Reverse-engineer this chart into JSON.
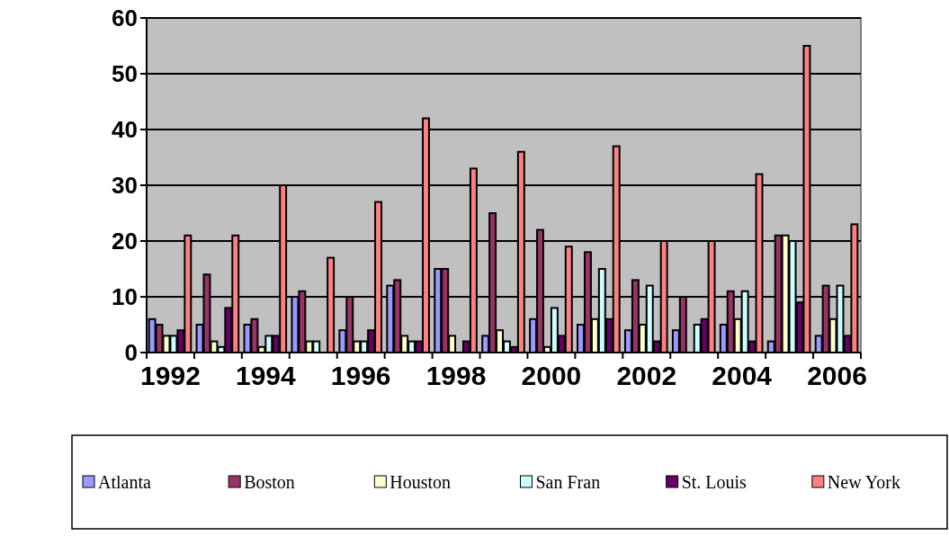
{
  "chart_data": {
    "type": "bar",
    "categories": [
      "1992",
      null,
      "1994",
      null,
      "1996",
      null,
      "1998",
      null,
      "2000",
      null,
      "2002",
      null,
      "2004",
      null,
      "2006"
    ],
    "series": [
      {
        "name": "Atlanta",
        "color": "#9999ff",
        "values": [
          6,
          5,
          5,
          10,
          4,
          12,
          15,
          3,
          6,
          5,
          4,
          4,
          5,
          2,
          3
        ]
      },
      {
        "name": "Boston",
        "color": "#993366",
        "values": [
          5,
          14,
          6,
          11,
          10,
          13,
          15,
          25,
          22,
          18,
          13,
          10,
          11,
          21,
          12
        ]
      },
      {
        "name": "Houston",
        "color": "#ffffcc",
        "values": [
          3,
          2,
          1,
          2,
          2,
          3,
          3,
          4,
          1,
          6,
          5,
          0,
          6,
          21,
          6
        ]
      },
      {
        "name": "San Fran",
        "color": "#ccffff",
        "values": [
          3,
          1,
          3,
          2,
          2,
          2,
          0,
          2,
          8,
          15,
          12,
          5,
          11,
          20,
          12
        ]
      },
      {
        "name": "St. Louis",
        "color": "#660066",
        "values": [
          4,
          8,
          3,
          0,
          4,
          2,
          2,
          1,
          3,
          6,
          2,
          6,
          2,
          9,
          3
        ]
      },
      {
        "name": "New York",
        "color": "#ff8080",
        "values": [
          21,
          21,
          30,
          17,
          27,
          42,
          33,
          36,
          19,
          37,
          20,
          20,
          32,
          55,
          23
        ]
      }
    ],
    "ylim": [
      0,
      60
    ],
    "yticks": [
      0,
      10,
      20,
      30,
      40,
      50,
      60
    ],
    "grid": "y",
    "legend": "bottom"
  }
}
